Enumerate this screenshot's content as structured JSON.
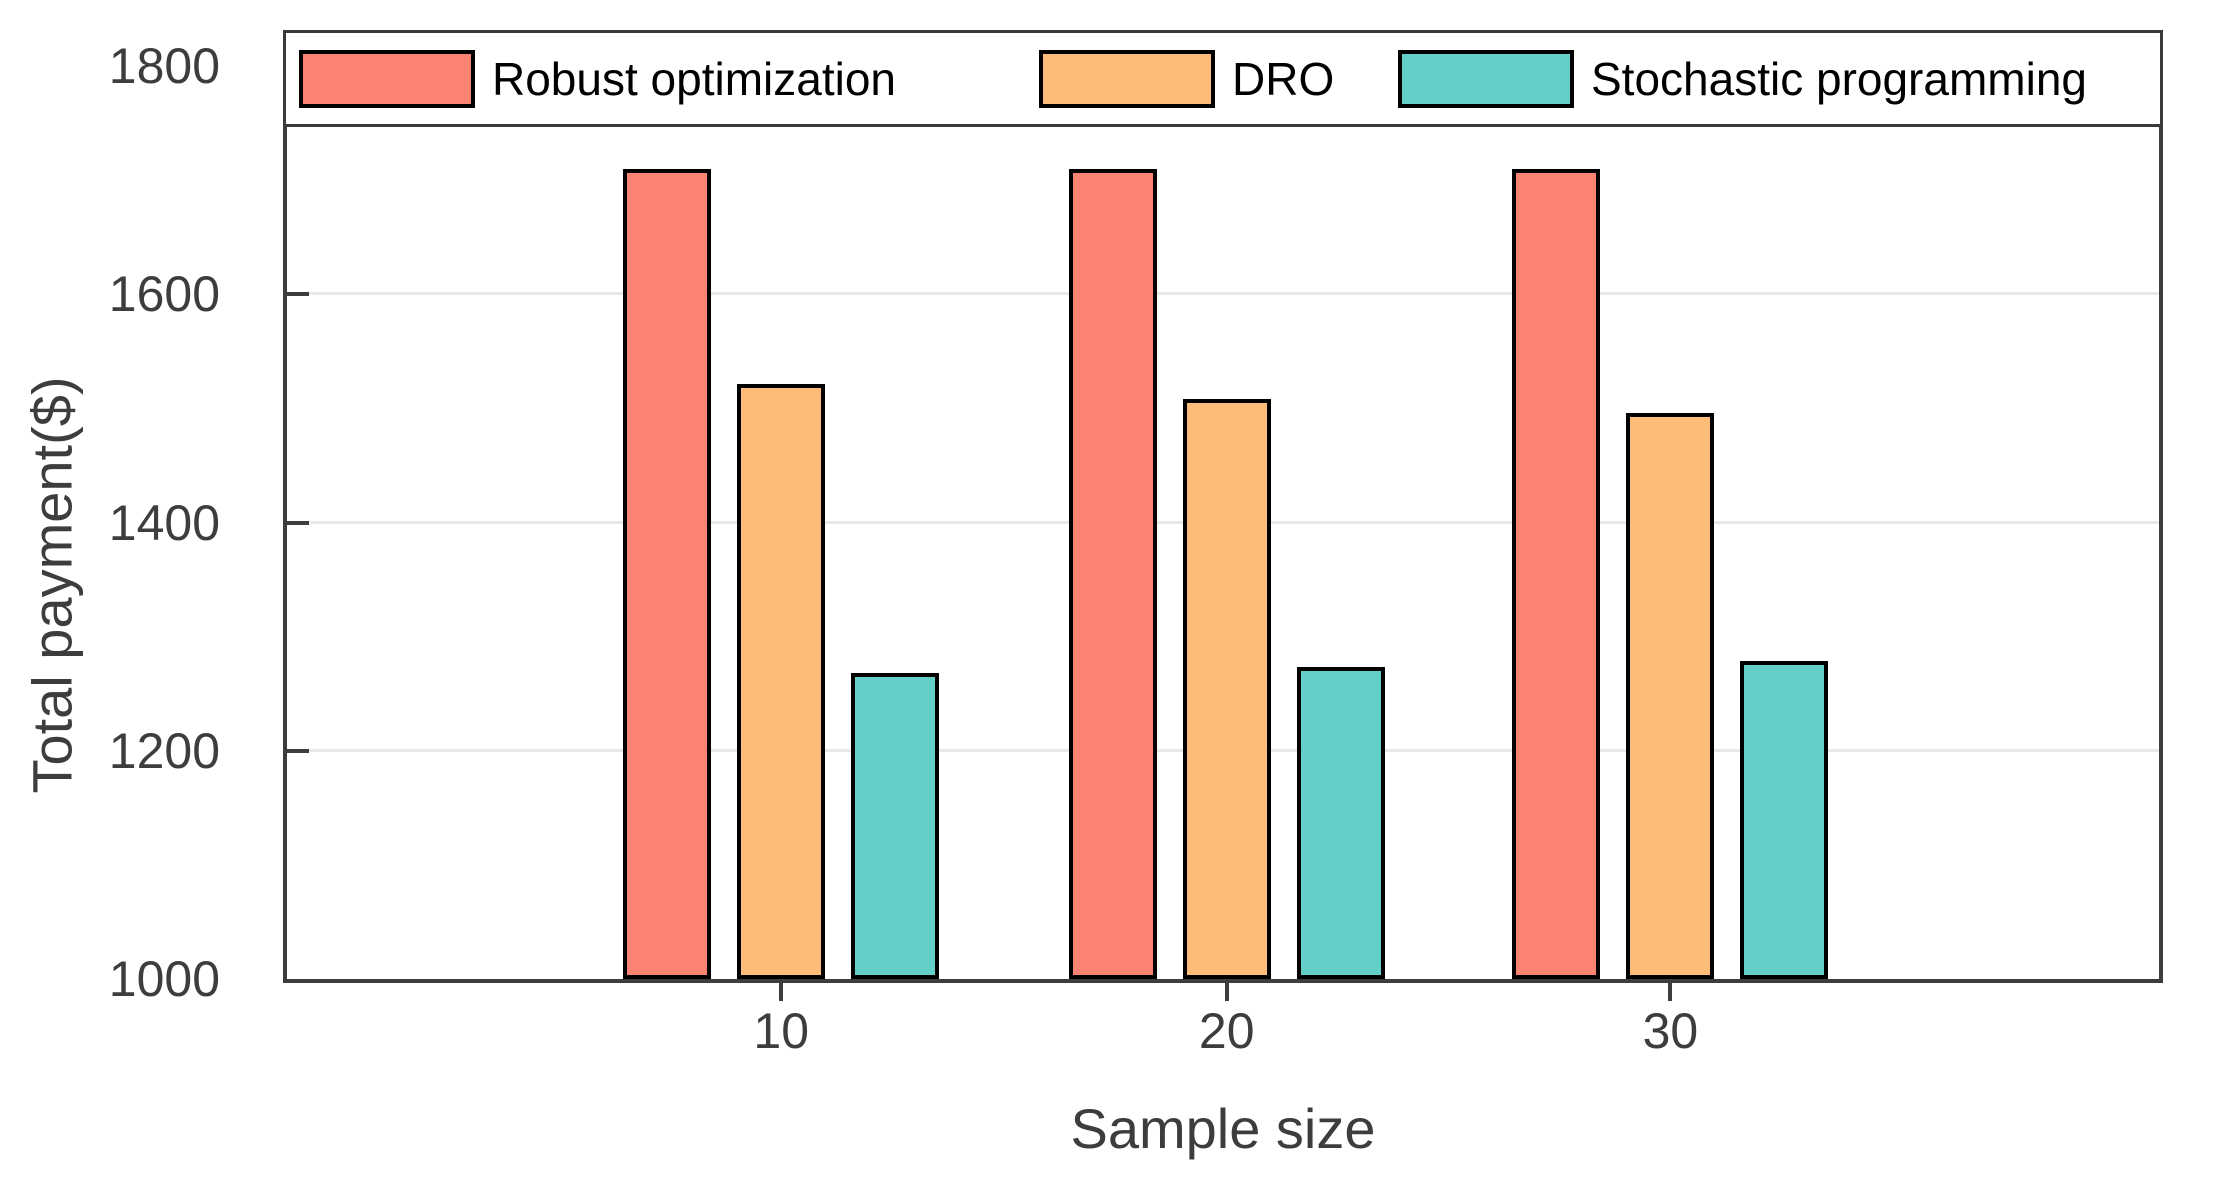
{
  "chart_data": {
    "type": "bar",
    "title": "",
    "xlabel": "Sample size",
    "ylabel": "Total payment($)",
    "categories": [
      "10",
      "20",
      "30"
    ],
    "series": [
      {
        "name": "Robust optimization",
        "color": "#FA8373",
        "values": [
          1710,
          1710,
          1710
        ]
      },
      {
        "name": "DRO",
        "color": "#FDBD78",
        "values": [
          1521,
          1508,
          1496
        ]
      },
      {
        "name": "Stochastic programming",
        "color": "#63CFC8",
        "values": [
          1268,
          1273,
          1279
        ]
      }
    ],
    "ylim": [
      1000,
      1800
    ],
    "yticks": [
      1000,
      1200,
      1400,
      1600,
      1800
    ],
    "grid": "horizontal-gridlines-on",
    "legend_position": "top-full-width-box",
    "group_centers_frac": [
      0.264,
      0.502,
      0.739
    ]
  },
  "style": {
    "background": "#FFFFFF",
    "axis_color": "#3D3D3D",
    "grid_color": "#E8E8E8",
    "bar_border_color": "#000000",
    "legend_border_color": "#3A3A3A",
    "legend_text_color": "#000000"
  }
}
